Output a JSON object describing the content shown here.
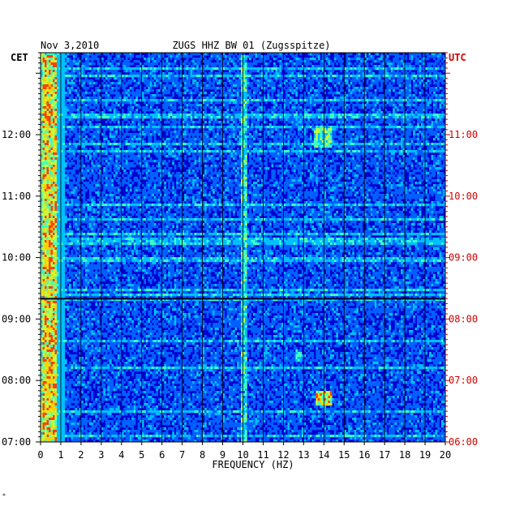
{
  "chart_data": {
    "type": "heatmap",
    "date": "Nov 3,2010",
    "title": "ZUGS HHZ BW 01 (Zugsspitze)",
    "xlabel": "FREQUENCY (HZ)",
    "xlim": [
      0,
      20
    ],
    "x_ticks": [
      "0",
      "1",
      "2",
      "3",
      "4",
      "5",
      "6",
      "7",
      "8",
      "9",
      "10",
      "11",
      "12",
      "13",
      "14",
      "15",
      "16",
      "17",
      "18",
      "19",
      "20"
    ],
    "left_axis_label": "CET",
    "right_axis_label": "UTC",
    "left_ticks": [
      "12:00",
      "11:00",
      "10:00",
      "09:00",
      "08:00",
      "07:00"
    ],
    "right_ticks": [
      "11:00",
      "10:00",
      "09:00",
      "08:00",
      "07:00",
      "06:00"
    ],
    "time_range_utc": [
      "06:00",
      "12:20"
    ],
    "colormap": [
      "#0000c8",
      "#0000ff",
      "#0060ff",
      "#00c0ff",
      "#40ffc0",
      "#c0ff40",
      "#ffd000",
      "#ff4000",
      "#c00000"
    ],
    "features": [
      {
        "name": "microseismic band",
        "freq_hz": [
          0.1,
          0.8
        ],
        "utc": [
          6.0,
          12.3
        ],
        "intensity": 0.85
      },
      {
        "name": "10 Hz line",
        "freq_hz": [
          9.9,
          10.2
        ],
        "utc": [
          6.0,
          12.3
        ],
        "intensity": 0.55
      },
      {
        "name": "burst",
        "freq_hz": [
          13.6,
          14.4
        ],
        "utc": [
          6.6,
          6.85
        ],
        "intensity": 0.8
      },
      {
        "name": "burst",
        "freq_hz": [
          13.5,
          14.4
        ],
        "utc": [
          10.8,
          11.1
        ],
        "intensity": 0.6
      },
      {
        "name": "burst",
        "freq_hz": [
          12.6,
          12.9
        ],
        "utc": [
          7.3,
          7.5
        ],
        "intensity": 0.5
      }
    ],
    "colors": {
      "frame": "#000000",
      "left_labels": "#000000",
      "right_labels": "#d40000",
      "grid": "#000000"
    }
  }
}
